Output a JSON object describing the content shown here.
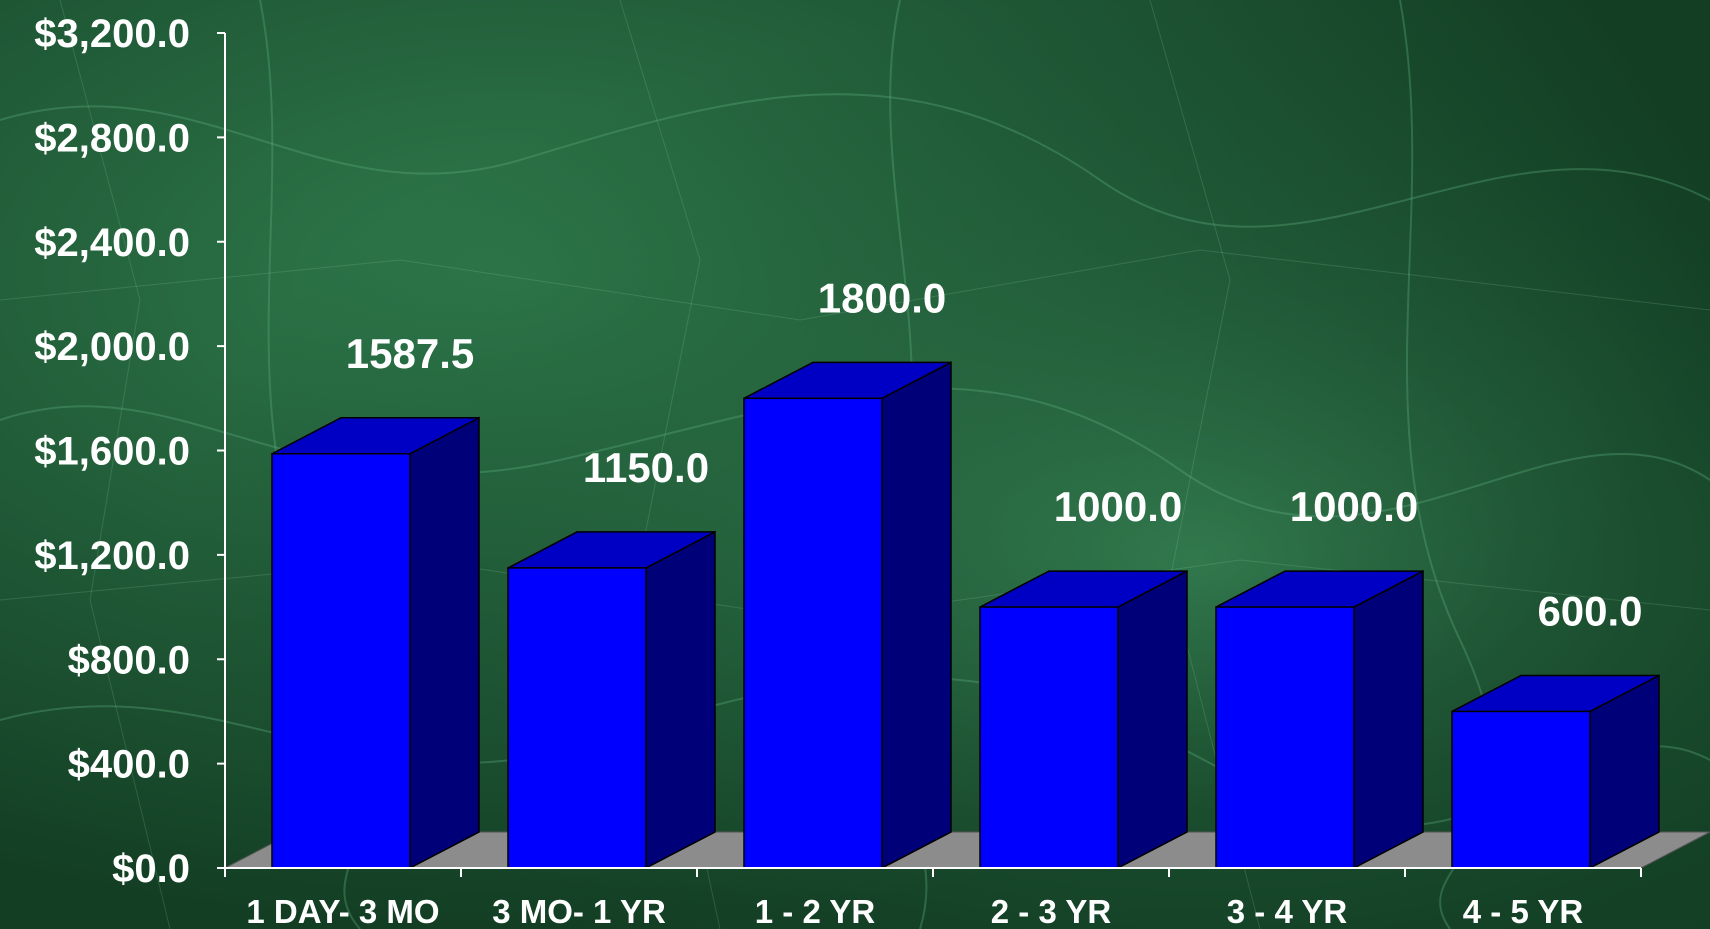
{
  "chart_data": {
    "type": "bar",
    "style": "3d",
    "title": "",
    "xlabel": "",
    "ylabel": "",
    "categories": [
      "1 DAY- 3 MO",
      "3 MO- 1 YR",
      "1 - 2 YR",
      "2 - 3 YR",
      "3 - 4 YR",
      "4 - 5 YR"
    ],
    "values": [
      1587.5,
      1150.0,
      1800.0,
      1000.0,
      1000.0,
      600.0
    ],
    "data_labels": [
      "1587.5",
      "1150.0",
      "1800.0",
      "1000.0",
      "1000.0",
      "600.0"
    ],
    "ylim": [
      0,
      3200
    ],
    "yticks": [
      0,
      400,
      800,
      1200,
      1600,
      2000,
      2400,
      2800,
      3200
    ],
    "ytick_labels": [
      "$0.0",
      "$400.0",
      "$800.0",
      "$1,200.0",
      "$1,600.0",
      "$2,000.0",
      "$2,400.0",
      "$2,800.0",
      "$3,200.0"
    ],
    "grid": false,
    "legend": "none",
    "colors": {
      "bar_front": "#0000ff",
      "bar_top": "#0000c4",
      "bar_side": "#000078",
      "floor": "#8c8c8c",
      "background": "#174d2c",
      "text": "#ffffff"
    }
  }
}
